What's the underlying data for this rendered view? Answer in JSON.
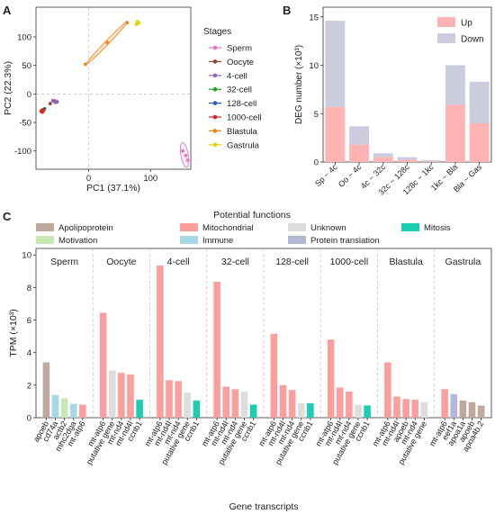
{
  "panel_labels": {
    "a": "A",
    "b": "B",
    "c": "C"
  },
  "chart_data": [
    {
      "panel": "A",
      "type": "scatter",
      "xlabel": "PC1 (37.1%)",
      "ylabel": "PC2 (22.3%)",
      "xlim": [
        -85,
        165
      ],
      "ylim": [
        -132,
        152
      ],
      "xticks": [
        0,
        100
      ],
      "yticks": [
        -100,
        -50,
        0,
        50,
        100
      ],
      "reference_lines": {
        "x": 0,
        "y": 0
      },
      "legend": {
        "title": "Stages",
        "placement": "right"
      },
      "series": [
        {
          "name": "Sperm",
          "color": "#e377c2",
          "points": [
            [
              152,
              -100
            ],
            [
              157,
              -108
            ],
            [
              160,
              -116
            ]
          ],
          "ellipse": {
            "cx": 155,
            "cy": -107,
            "rx": 6,
            "ry": 22,
            "angle": -10
          }
        },
        {
          "name": "Oocyte",
          "color": "#8c4a2f",
          "points": [
            [
              -62,
              -17
            ],
            [
              -56,
              -12
            ],
            [
              -51,
              -14
            ]
          ],
          "ellipse": null
        },
        {
          "name": "4-cell",
          "color": "#9467bd",
          "points": [
            [
              -58,
              -12
            ],
            [
              -54,
              -15
            ],
            [
              -52,
              -13
            ]
          ],
          "ellipse": null
        },
        {
          "name": "32-cell",
          "color": "#2ca02c",
          "points": [
            [
              -75,
              -28
            ],
            [
              -73,
              -30
            ],
            [
              -71,
              -26
            ]
          ],
          "ellipse": null
        },
        {
          "name": "128-cell",
          "color": "#1f5fb4",
          "points": [
            [
              -76,
              -31
            ],
            [
              -74,
              -29
            ],
            [
              -72,
              -27
            ]
          ],
          "ellipse": null
        },
        {
          "name": "1000-cell",
          "color": "#d62728",
          "points": [
            [
              -77,
              -30
            ],
            [
              -75,
              -32
            ],
            [
              -73,
              -28
            ]
          ],
          "ellipse": null
        },
        {
          "name": "Blastula",
          "color": "#ff7f0e",
          "points": [
            [
              -5,
              52
            ],
            [
              30,
              90
            ],
            [
              62,
              125
            ]
          ],
          "ellipse": {
            "cx": 30,
            "cy": 90,
            "rx": 48,
            "ry": 3,
            "angle": -46
          }
        },
        {
          "name": "Gastrula",
          "color": "#e6d300",
          "points": [
            [
              77,
              122
            ],
            [
              79,
              127
            ],
            [
              81,
              124
            ]
          ],
          "ellipse": null
        }
      ]
    },
    {
      "panel": "B",
      "type": "bar",
      "stacked": true,
      "ylabel": "DEG number (×10³)",
      "ylim": [
        0,
        16
      ],
      "yticks": [
        0,
        5,
        10,
        15
      ],
      "categories": [
        "Sp ~ 4c",
        "Oo ~ 4c",
        "4c ~ 32c",
        "32c ~ 128c",
        "128c ~ 1kc",
        "1kc ~ Bla",
        "Bla ~ Gas"
      ],
      "legend_placement": "top-right",
      "series": [
        {
          "name": "Up",
          "color": "#ffb3b3",
          "values": [
            5.7,
            1.8,
            0.5,
            0.25,
            0.1,
            5.9,
            4.0
          ]
        },
        {
          "name": "Down",
          "color": "#ccccdf",
          "values": [
            8.9,
            1.9,
            0.4,
            0.25,
            0.1,
            4.1,
            4.3
          ]
        }
      ]
    },
    {
      "panel": "C",
      "type": "bar",
      "xlabel": "Gene transcripts",
      "ylabel": "TPM (×10³)",
      "ylim": [
        0,
        10.4
      ],
      "yticks": [
        0,
        2,
        4,
        6,
        8,
        10
      ],
      "legend": {
        "title": "Potential functions",
        "placement": "top"
      },
      "functions": [
        {
          "name": "Apolipoprotein",
          "color": "#bfa89e"
        },
        {
          "name": "Motivation",
          "color": "#c7e9b4"
        },
        {
          "name": "Mitochondrial",
          "color": "#fa9e9e"
        },
        {
          "name": "Immune",
          "color": "#a6d8e6"
        },
        {
          "name": "Unknown",
          "color": "#dddddd"
        },
        {
          "name": "Protein translation",
          "color": "#b3b8d6"
        },
        {
          "name": "Mitosis",
          "color": "#1ccdb4"
        }
      ],
      "groups": [
        {
          "stage": "Sperm",
          "genes": [
            {
              "gene": "apoeb",
              "value": 3.4,
              "function": "Apolipoprotein"
            },
            {
              "gene": "cd74a",
              "value": 1.4,
              "function": "Immune"
            },
            {
              "gene": "actb2",
              "value": 1.2,
              "function": "Motivation"
            },
            {
              "gene": "mhc2dga",
              "value": 0.85,
              "function": "Immune"
            },
            {
              "gene": "mt-atp6",
              "value": 0.8,
              "function": "Mitochondrial"
            }
          ]
        },
        {
          "stage": "Oocyte",
          "genes": [
            {
              "gene": "mt-atp6",
              "value": 6.45,
              "function": "Mitochondrial"
            },
            {
              "gene": "putative gene",
              "value": 2.9,
              "function": "Unknown"
            },
            {
              "gene": "mt-nd4",
              "value": 2.75,
              "function": "Mitochondrial"
            },
            {
              "gene": "mt-nd4l",
              "value": 2.65,
              "function": "Mitochondrial"
            },
            {
              "gene": "ccnb1",
              "value": 1.1,
              "function": "Mitosis"
            }
          ]
        },
        {
          "stage": "4-cell",
          "genes": [
            {
              "gene": "mt-atp6",
              "value": 9.35,
              "function": "Mitochondrial"
            },
            {
              "gene": "mt-nd4l",
              "value": 2.3,
              "function": "Mitochondrial"
            },
            {
              "gene": "mt-nd4",
              "value": 2.25,
              "function": "Mitochondrial"
            },
            {
              "gene": "putative gene",
              "value": 1.55,
              "function": "Unknown"
            },
            {
              "gene": "ccnb1",
              "value": 1.05,
              "function": "Mitosis"
            }
          ]
        },
        {
          "stage": "32-cell",
          "genes": [
            {
              "gene": "mt-atp6",
              "value": 8.35,
              "function": "Mitochondrial"
            },
            {
              "gene": "mt-nd4l",
              "value": 1.9,
              "function": "Mitochondrial"
            },
            {
              "gene": "mt-nd4",
              "value": 1.75,
              "function": "Mitochondrial"
            },
            {
              "gene": "putative gene",
              "value": 1.6,
              "function": "Unknown"
            },
            {
              "gene": "ccnb1",
              "value": 0.8,
              "function": "Mitosis"
            }
          ]
        },
        {
          "stage": "128-cell",
          "genes": [
            {
              "gene": "mt-atp6",
              "value": 5.15,
              "function": "Mitochondrial"
            },
            {
              "gene": "mt-nd4l",
              "value": 2.0,
              "function": "Mitochondrial"
            },
            {
              "gene": "mt-nd4",
              "value": 1.7,
              "function": "Mitochondrial"
            },
            {
              "gene": "putative gene",
              "value": 0.9,
              "function": "Unknown"
            },
            {
              "gene": "ccnb1",
              "value": 0.88,
              "function": "Mitosis"
            }
          ]
        },
        {
          "stage": "1000-cell",
          "genes": [
            {
              "gene": "mt-atp6",
              "value": 4.8,
              "function": "Mitochondrial"
            },
            {
              "gene": "mt-nd4l",
              "value": 1.85,
              "function": "Mitochondrial"
            },
            {
              "gene": "mt-nd4",
              "value": 1.6,
              "function": "Mitochondrial"
            },
            {
              "gene": "putative gene",
              "value": 0.8,
              "function": "Unknown"
            },
            {
              "gene": "ccnb1",
              "value": 0.75,
              "function": "Mitosis"
            }
          ]
        },
        {
          "stage": "Blastula",
          "genes": [
            {
              "gene": "mt-atp6",
              "value": 3.4,
              "function": "Mitochondrial"
            },
            {
              "gene": "mt-nd4l",
              "value": 1.3,
              "function": "Mitochondrial"
            },
            {
              "gene": "apoeb",
              "value": 1.15,
              "function": "Mitochondrial"
            },
            {
              "gene": "mt-nd4",
              "value": 1.1,
              "function": "Mitochondrial"
            },
            {
              "gene": "putative gene",
              "value": 0.95,
              "function": "Unknown"
            }
          ]
        },
        {
          "stage": "Gastrula",
          "genes": [
            {
              "gene": "mt-atp6",
              "value": 1.75,
              "function": "Mitochondrial"
            },
            {
              "gene": "eef1a",
              "value": 1.45,
              "function": "Protein translation"
            },
            {
              "gene": "apoa1a",
              "value": 1.05,
              "function": "Apolipoprotein"
            },
            {
              "gene": "apoeb",
              "value": 0.95,
              "function": "Apolipoprotein"
            },
            {
              "gene": "apoa4b.2",
              "value": 0.75,
              "function": "Apolipoprotein"
            }
          ]
        }
      ]
    }
  ]
}
